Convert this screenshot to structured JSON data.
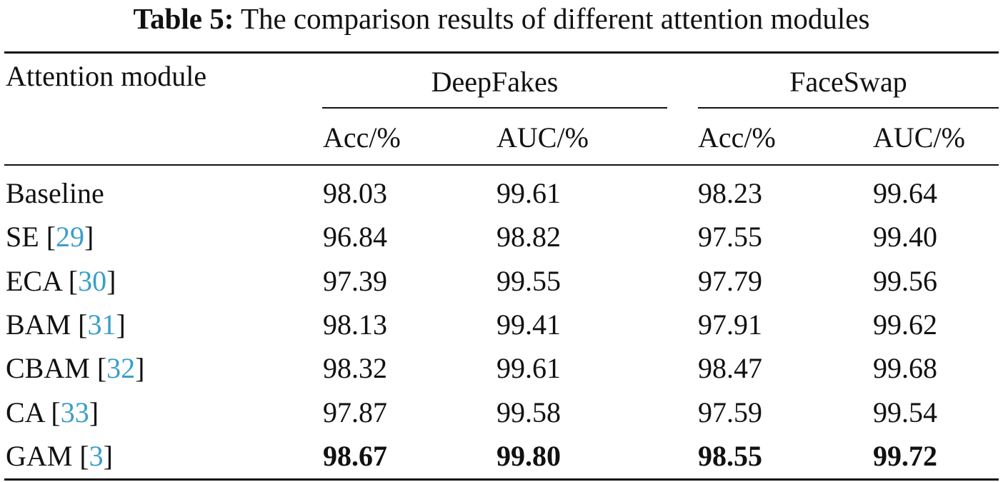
{
  "caption": {
    "label": "Table 5:",
    "text": "The comparison results of different attention modules"
  },
  "header": {
    "row_label": "Attention module",
    "groups": [
      {
        "name": "DeepFakes",
        "columns": [
          "Acc/%",
          "AUC/%"
        ]
      },
      {
        "name": "FaceSwap",
        "columns": [
          "Acc/%",
          "AUC/%"
        ]
      }
    ]
  },
  "rows": [
    {
      "name": "Baseline",
      "ref": "",
      "values": [
        "98.03",
        "99.61",
        "98.23",
        "99.64"
      ],
      "bold": false
    },
    {
      "name": "SE",
      "ref": "29",
      "values": [
        "96.84",
        "98.82",
        "97.55",
        "99.40"
      ],
      "bold": false
    },
    {
      "name": "ECA",
      "ref": "30",
      "values": [
        "97.39",
        "99.55",
        "97.79",
        "99.56"
      ],
      "bold": false
    },
    {
      "name": "BAM",
      "ref": "31",
      "values": [
        "98.13",
        "99.41",
        "97.91",
        "99.62"
      ],
      "bold": false
    },
    {
      "name": "CBAM",
      "ref": "32",
      "values": [
        "98.32",
        "99.61",
        "98.47",
        "99.68"
      ],
      "bold": false
    },
    {
      "name": "CA",
      "ref": "33",
      "values": [
        "97.87",
        "99.58",
        "97.59",
        "99.54"
      ],
      "bold": false
    },
    {
      "name": "GAM",
      "ref": "3",
      "values": [
        "98.67",
        "99.80",
        "98.55",
        "99.72"
      ],
      "bold": true
    }
  ],
  "colors": {
    "text": "#111111",
    "citation_link": "#3a9ecb"
  }
}
